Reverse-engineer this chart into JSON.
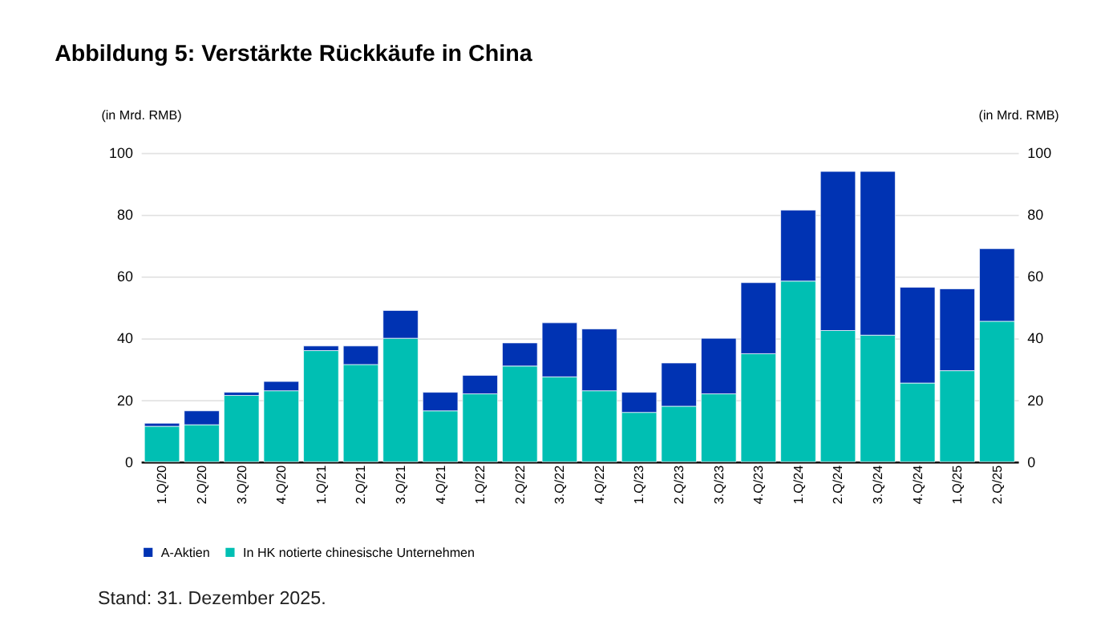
{
  "chart_data": {
    "type": "bar",
    "title": "Abbildung 5: Verstärkte Rückkäufe in China",
    "ylabel": "(in Mrd. RMB)",
    "y2label": "(in Mrd. RMB)",
    "categories": [
      "1.Q/20",
      "2.Q/20",
      "3.Q/20",
      "4.Q/20",
      "1.Q/21",
      "2.Q/21",
      "3.Q/21",
      "4.Q/21",
      "1.Q/22",
      "2.Q/22",
      "3.Q/22",
      "4.Q/22",
      "1.Q/23",
      "2.Q/23",
      "3.Q/23",
      "4.Q/23",
      "1.Q/24",
      "2.Q/24",
      "3.Q/24",
      "4.Q/24",
      "1.Q/25",
      "2.Q/25"
    ],
    "series": [
      {
        "name": "In HK notierte chinesische Unternehmen",
        "color": "#00bfb3",
        "values": [
          11.5,
          12,
          21.5,
          23,
          36,
          31.5,
          40,
          16.5,
          22,
          31,
          27.5,
          23,
          16,
          18,
          22,
          35,
          58.5,
          42.5,
          41,
          25.5,
          29.5,
          45.5
        ]
      },
      {
        "name": "A-Aktien",
        "color": "#0033b3",
        "values": [
          1,
          4.5,
          1,
          3,
          1.5,
          6,
          9,
          6,
          6,
          7.5,
          17.5,
          20,
          6.5,
          14,
          18,
          23,
          23,
          51.5,
          53,
          31,
          26.5,
          23.5
        ]
      }
    ],
    "stacked": true,
    "ylim": [
      0,
      100
    ],
    "yticks": [
      0,
      20,
      40,
      60,
      80,
      100
    ],
    "y2lim": [
      0,
      100
    ],
    "y2ticks": [
      0,
      20,
      40,
      60,
      80,
      100
    ],
    "grid": "y",
    "legend": "bottom left",
    "annotations": [
      "Stand: 31. Dezember 2025."
    ]
  }
}
